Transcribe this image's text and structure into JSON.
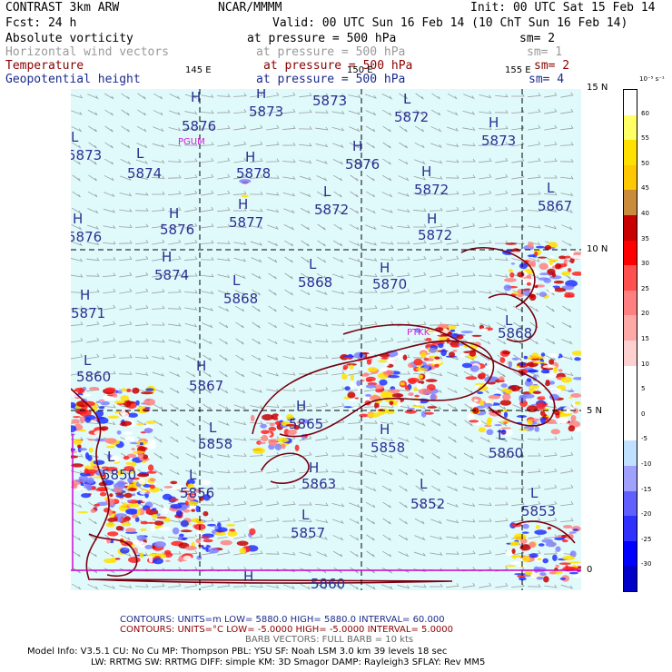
{
  "header": {
    "model": "CONTRAST  3km ARW",
    "center": "NCAR/MMMM",
    "init": "Init: 00 UTC Sat 15 Feb 14",
    "fcst": "Fcst:   24 h",
    "valid": "Valid: 00 UTC Sun 16 Feb 14 (10 ChT Sun 16 Feb 14)"
  },
  "fields": [
    {
      "name": "Absolute vorticity",
      "level": "at pressure =  500 hPa",
      "sm": "sm= 2",
      "color": "#000000"
    },
    {
      "name": "Horizontal wind vectors",
      "level": "at pressure =  500 hPa",
      "sm": "sm= 1",
      "color": "#9a9a9a"
    },
    {
      "name": "Temperature",
      "level": "at pressure =  500 hPa",
      "sm": "sm= 2",
      "color": "#8b0000"
    },
    {
      "name": "Geopotential height",
      "level": "at pressure =  500 hPa",
      "sm": "sm= 4",
      "color": "#1c2a8c"
    }
  ],
  "axes": {
    "lon_labels": [
      "145 E",
      "150 E",
      "155 E"
    ],
    "lat_labels": [
      "15 N",
      "10 N",
      "5 N",
      "0"
    ]
  },
  "colorbar": {
    "unit": "10⁻⁵ s⁻¹",
    "ticks": [
      "60",
      "55",
      "50",
      "45",
      "40",
      "35",
      "30",
      "25",
      "20",
      "15",
      "10",
      "5",
      "0",
      "-5",
      "-10",
      "-15",
      "-20",
      "-25",
      "-30"
    ],
    "colors": [
      "#ffffff",
      "#ffff66",
      "#ffe000",
      "#ffc800",
      "#c88c3c",
      "#c80000",
      "#ff0000",
      "#ff5050",
      "#ff8080",
      "#ffa8a8",
      "#ffd0d0",
      "#ffffff",
      "#ffffff",
      "#ffffff",
      "#c0e0ff",
      "#a0a0ff",
      "#6060ff",
      "#3030ff",
      "#0000ff",
      "#0000c8"
    ]
  },
  "labels": [
    {
      "k": "H",
      "v": "5876",
      "id": "h1"
    },
    {
      "k": "H",
      "v": "5873",
      "id": "h2"
    },
    {
      "k": "H",
      "v": "5873",
      "id": "h3"
    },
    {
      "k": "L",
      "v": "5872",
      "id": "l1"
    },
    {
      "k": "H",
      "v": "5873",
      "id": "h4"
    },
    {
      "k": "L",
      "v": "5873",
      "id": "l2"
    },
    {
      "k": "L",
      "v": "5874",
      "id": "l3"
    },
    {
      "k": "H",
      "v": "5878",
      "id": "h5"
    },
    {
      "k": "H",
      "v": "5876",
      "id": "h6"
    },
    {
      "k": "H",
      "v": "5872",
      "id": "h7"
    },
    {
      "k": "L",
      "v": "5867",
      "id": "l4"
    },
    {
      "k": "H",
      "v": "5876",
      "id": "h8"
    },
    {
      "k": "H",
      "v": "5876",
      "id": "h9"
    },
    {
      "k": "H",
      "v": "5877",
      "id": "h10"
    },
    {
      "k": "L",
      "v": "5872",
      "id": "l5"
    },
    {
      "k": "H",
      "v": "5872",
      "id": "h11"
    },
    {
      "k": "H",
      "v": "5874",
      "id": "h12"
    },
    {
      "k": "L",
      "v": "5868",
      "id": "l6"
    },
    {
      "k": "L",
      "v": "5868",
      "id": "l7"
    },
    {
      "k": "H",
      "v": "5870",
      "id": "h13"
    },
    {
      "k": "H",
      "v": "5871",
      "id": "h14"
    },
    {
      "k": "L",
      "v": "5868",
      "id": "l8"
    },
    {
      "k": "L",
      "v": "5860",
      "id": "l9"
    },
    {
      "k": "H",
      "v": "5867",
      "id": "h15"
    },
    {
      "k": "H",
      "v": "5865",
      "id": "h16"
    },
    {
      "k": "L",
      "v": "5858",
      "id": "l10"
    },
    {
      "k": "H",
      "v": "5858",
      "id": "h17"
    },
    {
      "k": "L",
      "v": "5860",
      "id": "l11"
    },
    {
      "k": "H",
      "v": "5863",
      "id": "h18"
    },
    {
      "k": "L",
      "v": "5850",
      "id": "l12"
    },
    {
      "k": "L",
      "v": "5856",
      "id": "l13"
    },
    {
      "k": "L",
      "v": "5852",
      "id": "l14"
    },
    {
      "k": "L",
      "v": "5853",
      "id": "l15"
    },
    {
      "k": "L",
      "v": "5857",
      "id": "l16"
    },
    {
      "k": "H",
      "v": "5860",
      "id": "h19"
    }
  ],
  "places": {
    "p1": "PGUM",
    "p2": "PTKK"
  },
  "footer": {
    "contours1": "CONTOURS:  UNITS=m  LOW=  5880.0       HIGH=  5880.0       INTERVAL=   60.000",
    "contours2": "CONTOURS:  UNITS=°C  LOW= -5.0000       HIGH= -5.0000       INTERVAL=   5.0000",
    "barb": "BARB VECTORS:  FULL BARB = 10 kts",
    "model1": "Model Info: V3.5.1     CU: No Cu     MP: Thompson     PBL: YSU       SF: Noah LSM      3.0 km   39 levels   18 sec",
    "model2": "LW: RRTMG    SW: RRTMG   DIFF: simple KM: 3D Smagor DAMP: Rayleigh3   SFLAY: Rev MM5"
  }
}
